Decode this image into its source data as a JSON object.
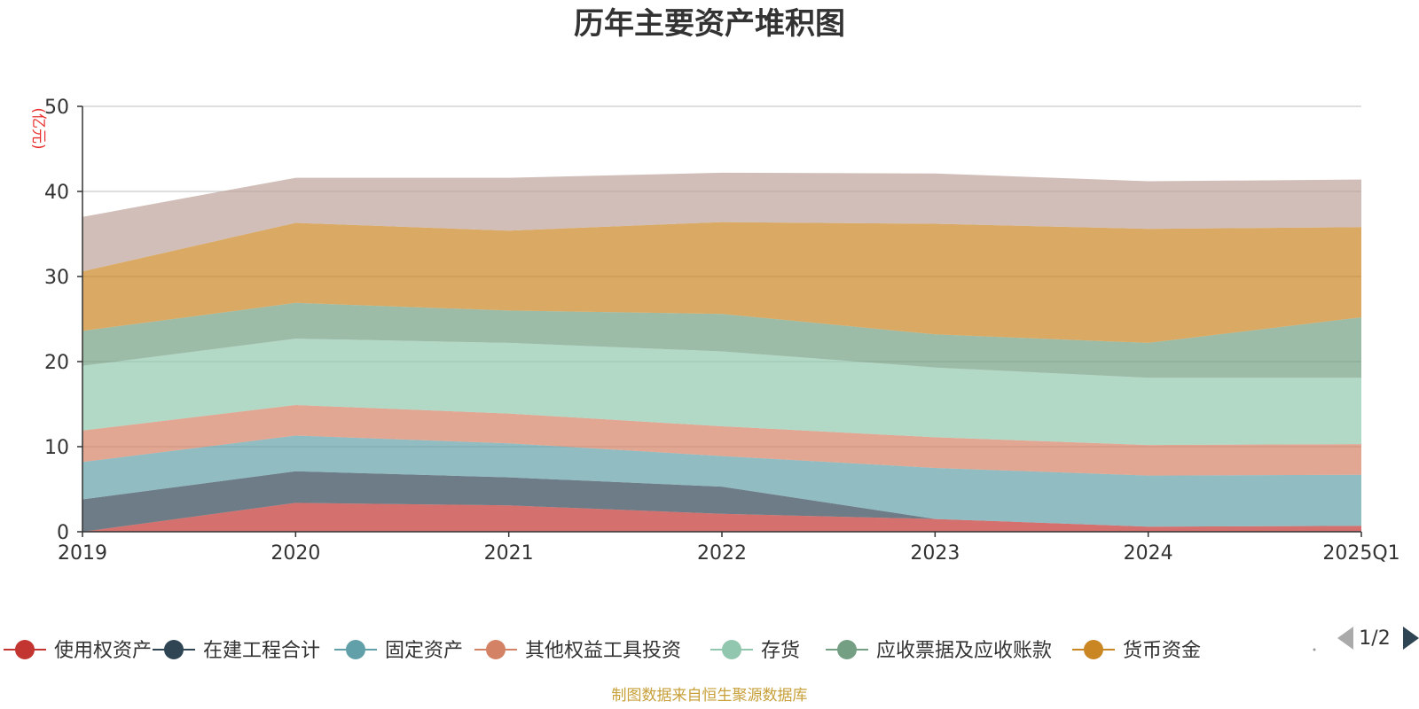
{
  "chart_data": {
    "type": "area",
    "stacked": true,
    "title": "历年主要资产堆积图",
    "unit_label": "(亿元)",
    "categories": [
      "2019",
      "2020",
      "2021",
      "2022",
      "2023",
      "2024",
      "2025Q1"
    ],
    "ylim": [
      0,
      50
    ],
    "yticks": [
      "0",
      "10",
      "20",
      "30",
      "40",
      "50"
    ],
    "grid": true,
    "series": [
      {
        "name": "使用权资产",
        "color": "#c23531",
        "values": [
          0.0,
          3.4,
          3.1,
          2.1,
          1.5,
          0.6,
          0.7
        ]
      },
      {
        "name": "在建工程合计",
        "color": "#2f4554",
        "values": [
          3.8,
          3.7,
          3.3,
          3.2,
          0.0,
          0.0,
          0.0
        ]
      },
      {
        "name": "固定资产",
        "color": "#61a0a8",
        "values": [
          4.4,
          4.2,
          4.0,
          3.6,
          6.0,
          6.0,
          6.0
        ]
      },
      {
        "name": "其他权益工具投资",
        "color": "#d48265",
        "values": [
          3.7,
          3.6,
          3.5,
          3.5,
          3.6,
          3.6,
          3.6
        ]
      },
      {
        "name": "存货",
        "color": "#91c7ae",
        "values": [
          7.6,
          7.8,
          8.3,
          8.8,
          8.2,
          7.9,
          7.8
        ]
      },
      {
        "name": "应收票据及应收账款",
        "color": "#749f83",
        "values": [
          4.1,
          4.2,
          3.8,
          4.4,
          3.9,
          4.1,
          7.1
        ]
      },
      {
        "name": "货币资金",
        "color": "#ca8622",
        "values": [
          7.0,
          9.4,
          9.4,
          10.8,
          13.0,
          13.4,
          10.6
        ]
      },
      {
        "name": "",
        "color": "#bda29a",
        "values": [
          6.4,
          5.3,
          6.2,
          5.8,
          5.9,
          5.6,
          5.6
        ]
      }
    ],
    "legend": {
      "position": "bottom",
      "visible_items": [
        "使用权资产",
        "在建工程合计",
        "固定资产",
        "其他权益工具投资",
        "存货",
        "应收票据及应收账款",
        "货币资金"
      ],
      "page": "1/2"
    }
  },
  "footer": {
    "source": "制图数据来自恒生聚源数据库"
  }
}
